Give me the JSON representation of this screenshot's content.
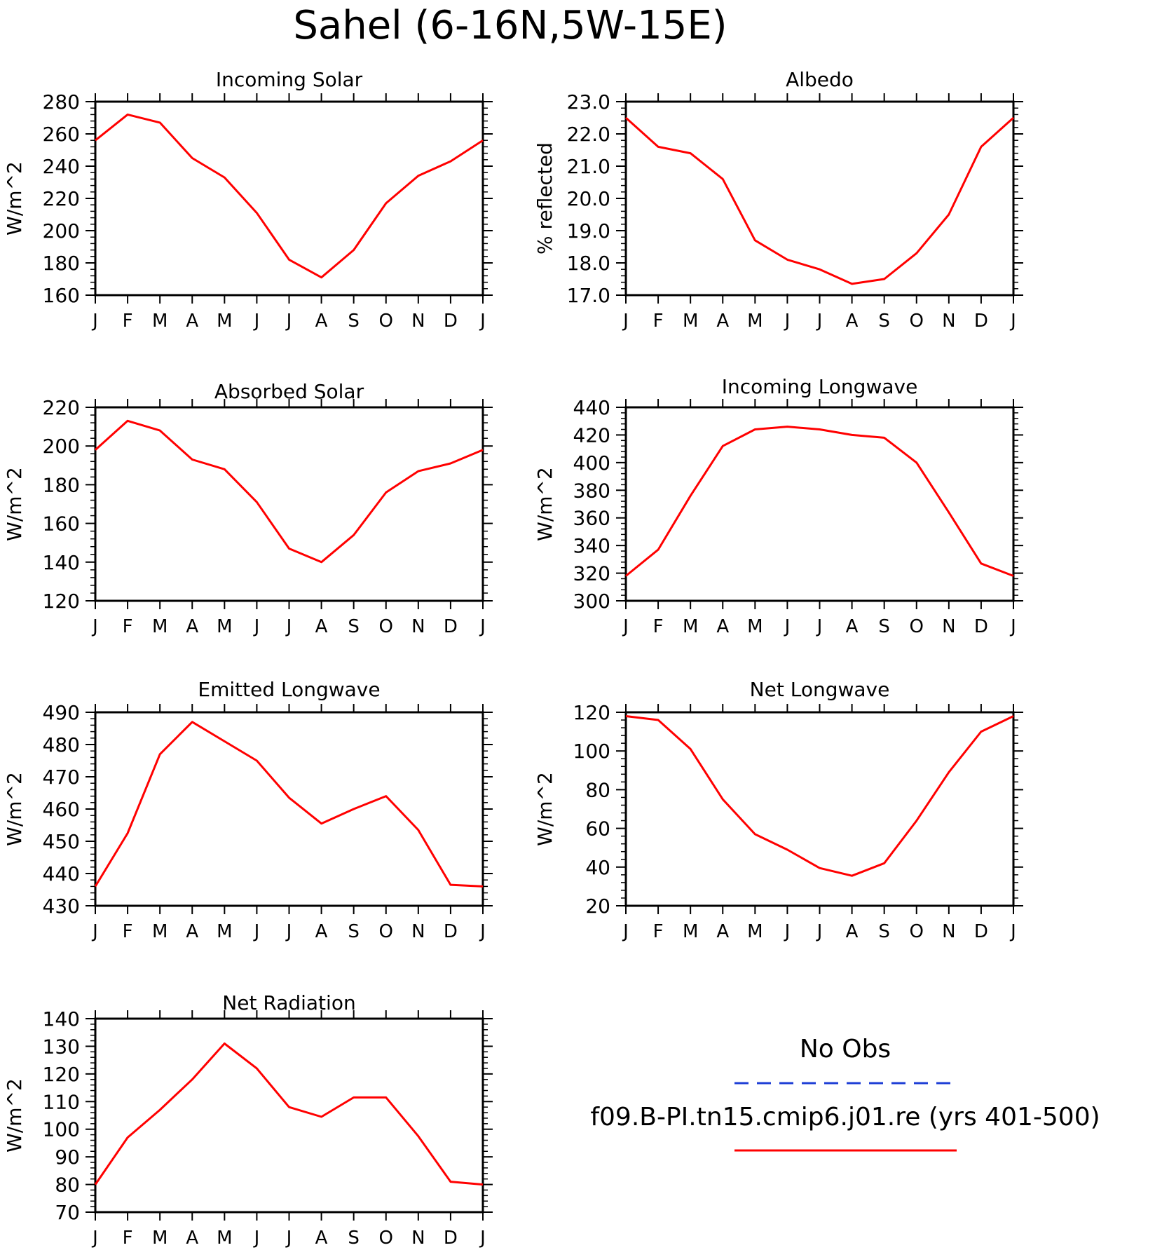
{
  "figure": {
    "title": "Sahel (6-16N,5W-15E)",
    "legend": {
      "obs_label": "No Obs",
      "obs_color": "#1f3fd6",
      "model_label": "f09.B-PI.tn15.cmip6.j01.re (yrs 401-500)",
      "model_color": "#ff0000"
    }
  },
  "chart_data": [
    {
      "type": "line",
      "title": "Incoming Solar",
      "ylabel": "W/m^2",
      "categories": [
        "J",
        "F",
        "M",
        "A",
        "M",
        "J",
        "J",
        "A",
        "S",
        "O",
        "N",
        "D",
        "J"
      ],
      "ylim": [
        160,
        280
      ],
      "yticks": [
        "160",
        "180",
        "200",
        "220",
        "240",
        "260",
        "280"
      ],
      "series": [
        {
          "values": [
            256,
            272,
            267,
            245,
            233,
            211,
            182,
            171,
            188,
            217,
            234,
            243,
            256
          ]
        }
      ]
    },
    {
      "type": "line",
      "title": "Albedo",
      "ylabel": "% reflected",
      "categories": [
        "J",
        "F",
        "M",
        "A",
        "M",
        "J",
        "J",
        "A",
        "S",
        "O",
        "N",
        "D",
        "J"
      ],
      "ylim": [
        17.0,
        23.0
      ],
      "yticks": [
        "17.0",
        "18.0",
        "19.0",
        "20.0",
        "21.0",
        "22.0",
        "23.0"
      ],
      "series": [
        {
          "values": [
            22.5,
            21.6,
            21.4,
            20.6,
            18.7,
            18.1,
            17.8,
            17.35,
            17.5,
            18.3,
            19.5,
            21.6,
            22.5
          ]
        }
      ]
    },
    {
      "type": "line",
      "title": "Absorbed Solar",
      "ylabel": "W/m^2",
      "categories": [
        "J",
        "F",
        "M",
        "A",
        "M",
        "J",
        "J",
        "A",
        "S",
        "O",
        "N",
        "D",
        "J"
      ],
      "ylim": [
        120,
        220
      ],
      "yticks": [
        "120",
        "140",
        "160",
        "180",
        "200",
        "220"
      ],
      "series": [
        {
          "values": [
            198,
            213,
            208,
            193,
            188,
            171,
            147,
            140,
            154,
            176,
            187,
            191,
            198
          ]
        }
      ]
    },
    {
      "type": "line",
      "title": "Incoming Longwave",
      "ylabel": "W/m^2",
      "categories": [
        "J",
        "F",
        "M",
        "A",
        "M",
        "J",
        "J",
        "A",
        "S",
        "O",
        "N",
        "D",
        "J"
      ],
      "ylim": [
        300,
        440
      ],
      "yticks": [
        "300",
        "320",
        "340",
        "360",
        "380",
        "400",
        "420",
        "440"
      ],
      "series": [
        {
          "values": [
            318,
            337,
            376,
            412,
            424,
            426,
            424,
            420,
            418,
            400,
            364,
            327,
            318
          ]
        }
      ]
    },
    {
      "type": "line",
      "title": "Emitted Longwave",
      "ylabel": "W/m^2",
      "categories": [
        "J",
        "F",
        "M",
        "A",
        "M",
        "J",
        "J",
        "A",
        "S",
        "O",
        "N",
        "D",
        "J"
      ],
      "ylim": [
        430,
        490
      ],
      "yticks": [
        "430",
        "440",
        "450",
        "460",
        "470",
        "480",
        "490"
      ],
      "series": [
        {
          "values": [
            436,
            452.5,
            477,
            487,
            481,
            475,
            463.5,
            455.5,
            460,
            464,
            453.5,
            436.5,
            436
          ]
        }
      ]
    },
    {
      "type": "line",
      "title": "Net Longwave",
      "ylabel": "W/m^2",
      "categories": [
        "J",
        "F",
        "M",
        "A",
        "M",
        "J",
        "J",
        "A",
        "S",
        "O",
        "N",
        "D",
        "J"
      ],
      "ylim": [
        20,
        120
      ],
      "yticks": [
        "20",
        "40",
        "60",
        "80",
        "100",
        "120"
      ],
      "series": [
        {
          "values": [
            118,
            116,
            101,
            75,
            57,
            49,
            39.5,
            35.5,
            42,
            64,
            89,
            110,
            118
          ]
        }
      ]
    },
    {
      "type": "line",
      "title": "Net Radiation",
      "ylabel": "W/m^2",
      "categories": [
        "J",
        "F",
        "M",
        "A",
        "M",
        "J",
        "J",
        "A",
        "S",
        "O",
        "N",
        "D",
        "J"
      ],
      "ylim": [
        70,
        140
      ],
      "yticks": [
        "70",
        "80",
        "90",
        "100",
        "110",
        "120",
        "130",
        "140"
      ],
      "series": [
        {
          "values": [
            80,
            97,
            107,
            118,
            131,
            122,
            108,
            104.5,
            111.5,
            111.5,
            97.5,
            81,
            80
          ]
        }
      ]
    }
  ]
}
